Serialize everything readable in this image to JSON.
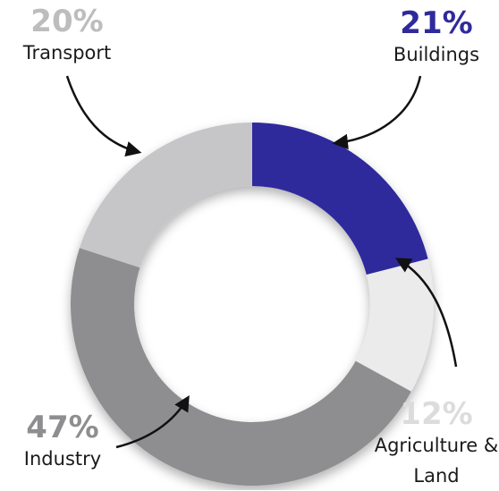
{
  "chart_data": {
    "type": "donut",
    "categories": [
      "Buildings",
      "Agriculture & Land",
      "Industry",
      "Transport"
    ],
    "values": [
      21,
      12,
      47,
      20
    ],
    "value_labels": [
      "21%",
      "12%",
      "47%",
      "20%"
    ],
    "colors": [
      "#2f2a9c",
      "#ebebeb",
      "#8e8e90",
      "#c6c6c8"
    ]
  }
}
